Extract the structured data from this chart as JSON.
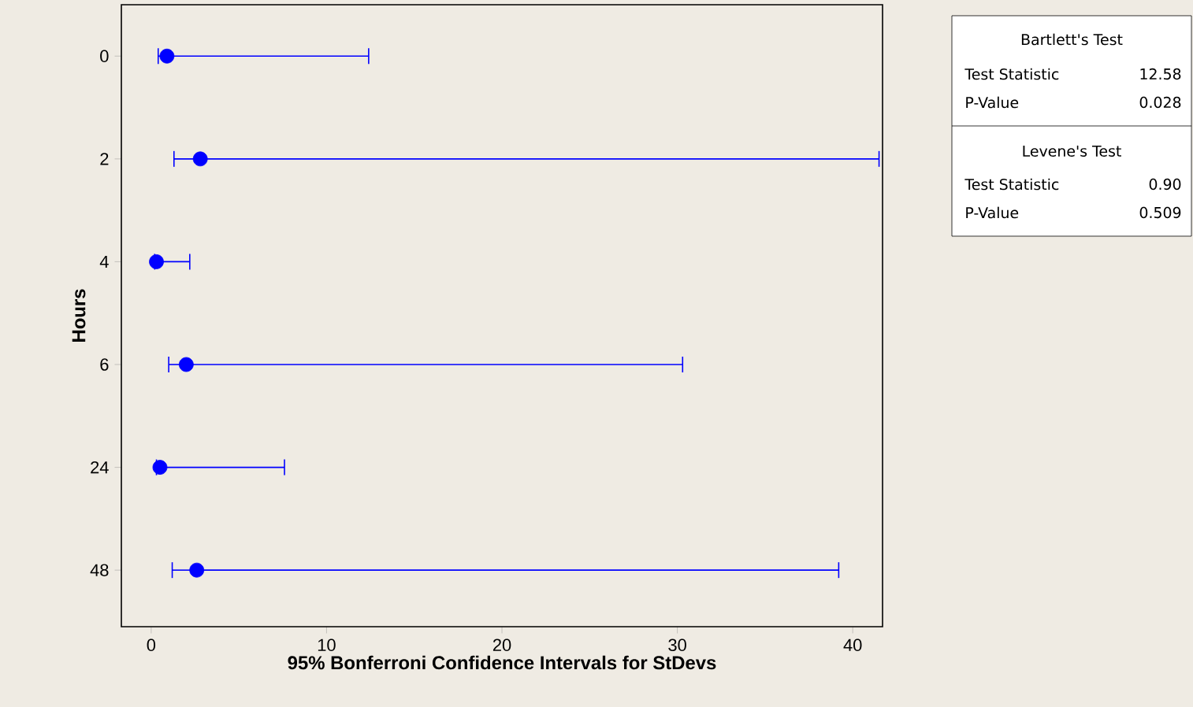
{
  "chart_data": {
    "type": "scatter",
    "orientation": "horizontal",
    "xlabel": "95% Bonferroni Confidence Intervals for StDevs",
    "ylabel": "Hours",
    "categories": [
      "0",
      "2",
      "4",
      "6",
      "24",
      "48"
    ],
    "values": [
      0.9,
      2.8,
      0.3,
      2.0,
      0.5,
      2.6
    ],
    "errors": [
      [
        0.4,
        12.4
      ],
      [
        1.3,
        41.5
      ],
      [
        0.2,
        2.2
      ],
      [
        1.0,
        30.3
      ],
      [
        0.3,
        7.6
      ],
      [
        1.2,
        39.2
      ]
    ],
    "color": "#0000ff",
    "xlim": [
      -1.7,
      41.7
    ],
    "xticks": [
      0,
      10,
      20,
      30,
      40
    ],
    "annotations": [
      "Bartlett's Test",
      "Test Statistic",
      "12.58",
      "P-Value",
      "0.028",
      "Levene's Test",
      "Test Statistic",
      "0.90",
      "P-Value",
      "0.509"
    ]
  }
}
